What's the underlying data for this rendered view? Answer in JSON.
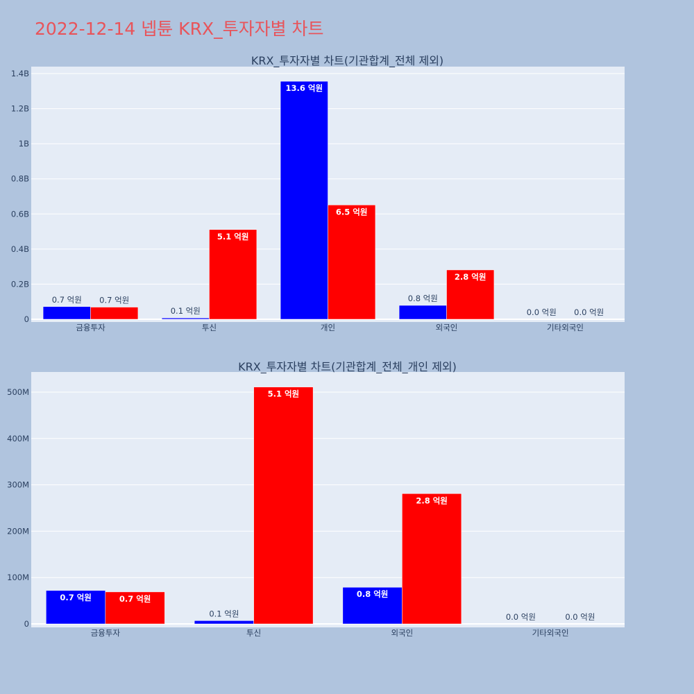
{
  "title": "2022-12-14 넵튠 KRX_투자자별 차트",
  "colors": {
    "buy": "#0000ff",
    "sell": "#ff0000",
    "plot_bg": "#e5ecf6",
    "page_bg": "#b0c4de"
  },
  "chart_data": [
    {
      "type": "bar",
      "title": "KRX_투자자별 차트(기관합계_전체 제외)",
      "categories": [
        "금융투자",
        "투신",
        "개인",
        "외국인",
        "기타외국인"
      ],
      "ylim": [
        0,
        1400000000
      ],
      "yticks": [
        0,
        200000000,
        400000000,
        600000000,
        800000000,
        1000000000,
        1200000000,
        1400000000
      ],
      "ytick_labels": [
        "0",
        "0.2B",
        "0.4B",
        "0.6B",
        "0.8B",
        "1B",
        "1.2B",
        "1.4B"
      ],
      "grid": true,
      "series": [
        {
          "color": "#0000ff",
          "values": [
            72000000,
            7000000,
            1356000000,
            79000000,
            0
          ],
          "labels": [
            "0.7 억원",
            "0.1 억원",
            "13.6 억원",
            "0.8 억원",
            "0.0 억원"
          ]
        },
        {
          "color": "#ff0000",
          "values": [
            69000000,
            511000000,
            651000000,
            281000000,
            0
          ],
          "labels": [
            "0.7 억원",
            "5.1 억원",
            "6.5 억원",
            "2.8 억원",
            "0.0 억원"
          ]
        }
      ]
    },
    {
      "type": "bar",
      "title": "KRX_투자자별 차트(기관합계_전체_개인 제외)",
      "categories": [
        "금융투자",
        "투신",
        "외국인",
        "기타외국인"
      ],
      "ylim": [
        0,
        500000000
      ],
      "yticks": [
        0,
        100000000,
        200000000,
        300000000,
        400000000,
        500000000
      ],
      "ytick_labels": [
        "0",
        "100M",
        "200M",
        "300M",
        "400M",
        "500M"
      ],
      "grid": true,
      "series": [
        {
          "color": "#0000ff",
          "values": [
            72000000,
            7000000,
            79000000,
            0
          ],
          "labels": [
            "0.7 억원",
            "0.1 억원",
            "0.8 억원",
            "0.0 억원"
          ]
        },
        {
          "color": "#ff0000",
          "values": [
            69000000,
            511000000,
            281000000,
            0
          ],
          "labels": [
            "0.7 억원",
            "5.1 억원",
            "2.8 억원",
            "0.0 억원"
          ]
        }
      ]
    }
  ]
}
